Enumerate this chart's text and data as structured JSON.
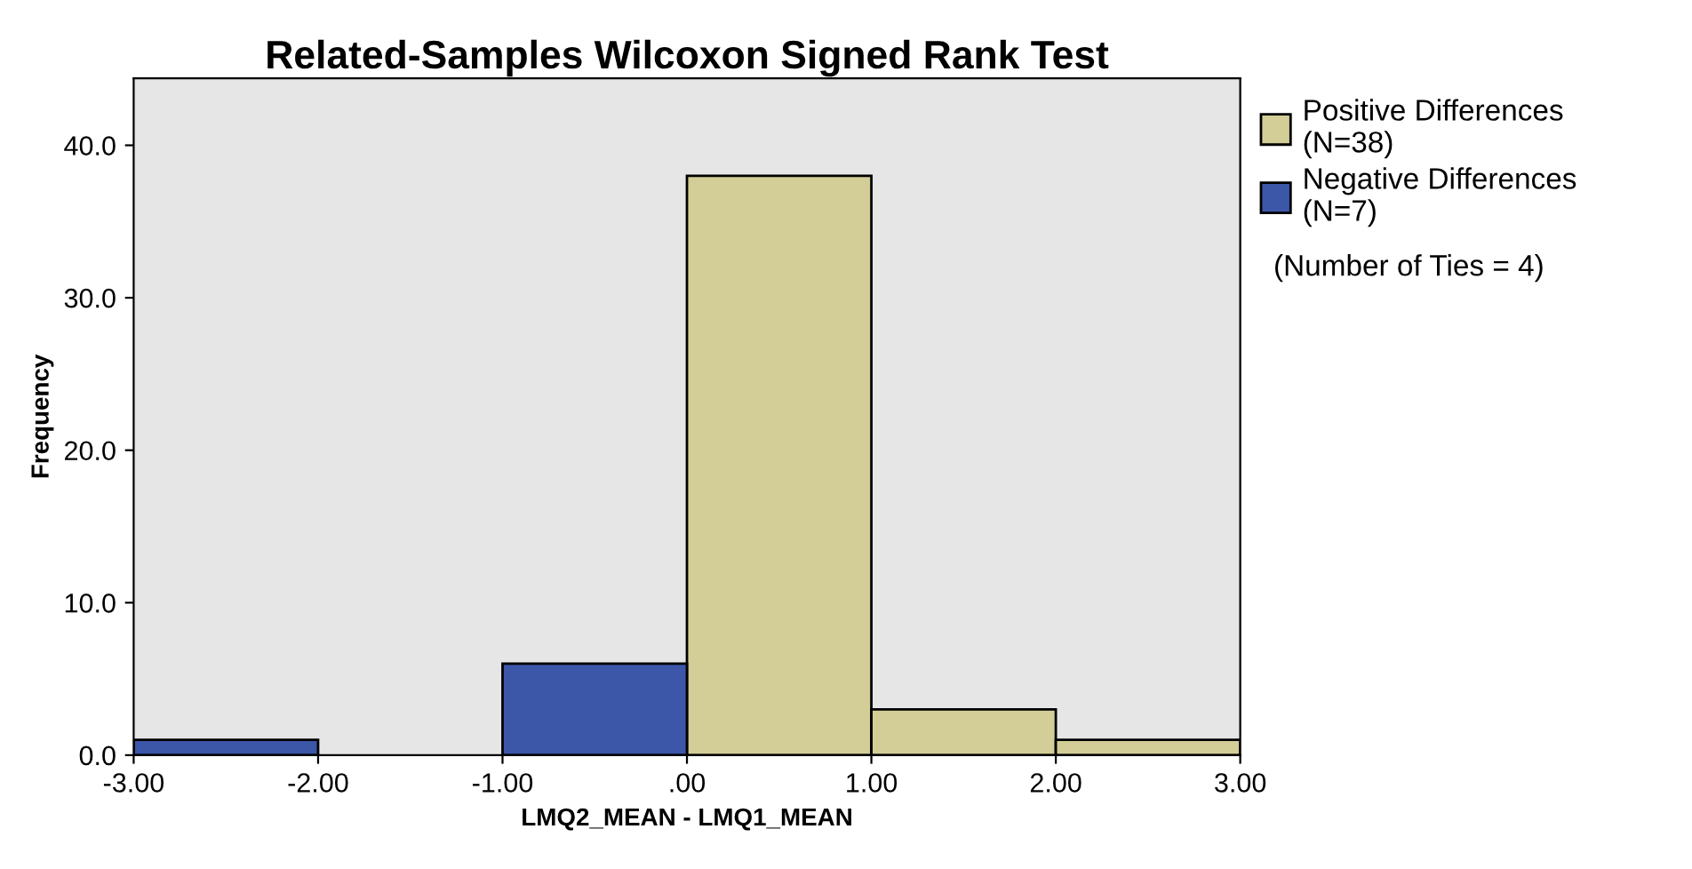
{
  "chart_data": {
    "type": "histogram",
    "title": "Related-Samples Wilcoxon Signed Rank Test",
    "xlabel": "LMQ2_MEAN - LMQ1_MEAN",
    "ylabel": "Frequency",
    "bins": [
      -3,
      -2,
      -1,
      0,
      1,
      2,
      3
    ],
    "series": [
      {
        "name": "Positive Differences\n(N=38)",
        "color": "#d3ce97",
        "values": [
          null,
          null,
          null,
          38,
          3,
          1
        ]
      },
      {
        "name": "Negative Differences\n(N=7)",
        "color": "#3c56a8",
        "values": [
          1,
          null,
          6,
          null,
          null,
          null
        ]
      }
    ],
    "annotations": [
      "(Number of Ties = 4)"
    ],
    "xlim": [
      -3,
      3
    ],
    "xticks": [
      {
        "value": -3,
        "label": "-3.00"
      },
      {
        "value": -2,
        "label": "-2.00"
      },
      {
        "value": -1,
        "label": "-1.00"
      },
      {
        "value": 0,
        "label": ".00"
      },
      {
        "value": 1,
        "label": "1.00"
      },
      {
        "value": 2,
        "label": "2.00"
      },
      {
        "value": 3,
        "label": "3.00"
      }
    ],
    "ylim": [
      0,
      44.4
    ],
    "yticks": [
      {
        "value": 0,
        "label": "0.0"
      },
      {
        "value": 10,
        "label": "10.0"
      },
      {
        "value": 20,
        "label": "20.0"
      },
      {
        "value": 30,
        "label": "30.0"
      },
      {
        "value": 40,
        "label": "40.0"
      }
    ],
    "grid": false,
    "legend": "right"
  }
}
